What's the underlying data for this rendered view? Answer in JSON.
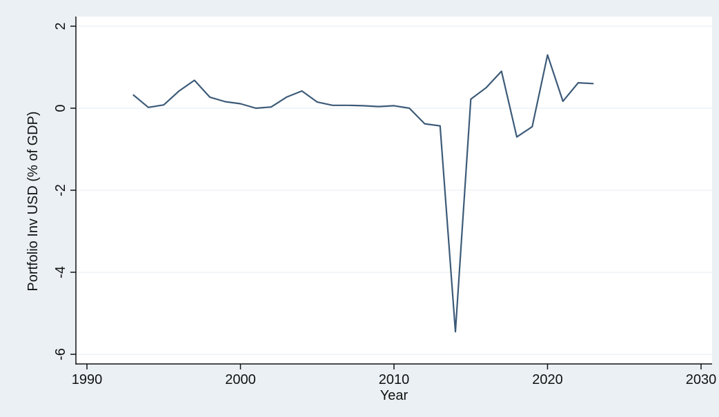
{
  "chart_data": {
    "type": "line",
    "title": "",
    "xlabel": "Year",
    "ylabel": "Portfolio Inv USD (% of GDP)",
    "xlim": [
      1990,
      2030
    ],
    "ylim": [
      -6,
      2
    ],
    "x_ticks": [
      1990,
      2000,
      2010,
      2020,
      2030
    ],
    "y_ticks": [
      2,
      0,
      -2,
      -4,
      -6
    ],
    "x_tick_labels": [
      "1990",
      "2000",
      "2010",
      "2020",
      "2030"
    ],
    "y_tick_labels": [
      "2",
      "0",
      "-2",
      "-4",
      "-6"
    ],
    "grid": true,
    "series": [
      {
        "x": [
          1993,
          1994,
          1995,
          1996,
          1997,
          1998,
          1999,
          2000,
          2001,
          2002,
          2003,
          2004,
          2005,
          2006,
          2007,
          2008,
          2009,
          2010,
          2011,
          2012,
          2013,
          2014,
          2015,
          2016,
          2017,
          2018,
          2019,
          2020,
          2021,
          2022,
          2023
        ],
        "values": [
          0.33,
          0.02,
          0.08,
          0.42,
          0.68,
          0.27,
          0.16,
          0.11,
          0.0,
          0.03,
          0.27,
          0.42,
          0.15,
          0.07,
          0.07,
          0.06,
          0.04,
          0.06,
          0.0,
          -0.38,
          -0.43,
          -5.45,
          0.22,
          0.5,
          0.9,
          -0.7,
          -0.45,
          1.3,
          0.17,
          0.62,
          0.6
        ]
      }
    ]
  },
  "colors": {
    "line": "#3c5a78",
    "plot_background": "#ffffff",
    "outer_background": "#eaf0f4",
    "grid": "#eef2f5",
    "axis": "#111111"
  }
}
